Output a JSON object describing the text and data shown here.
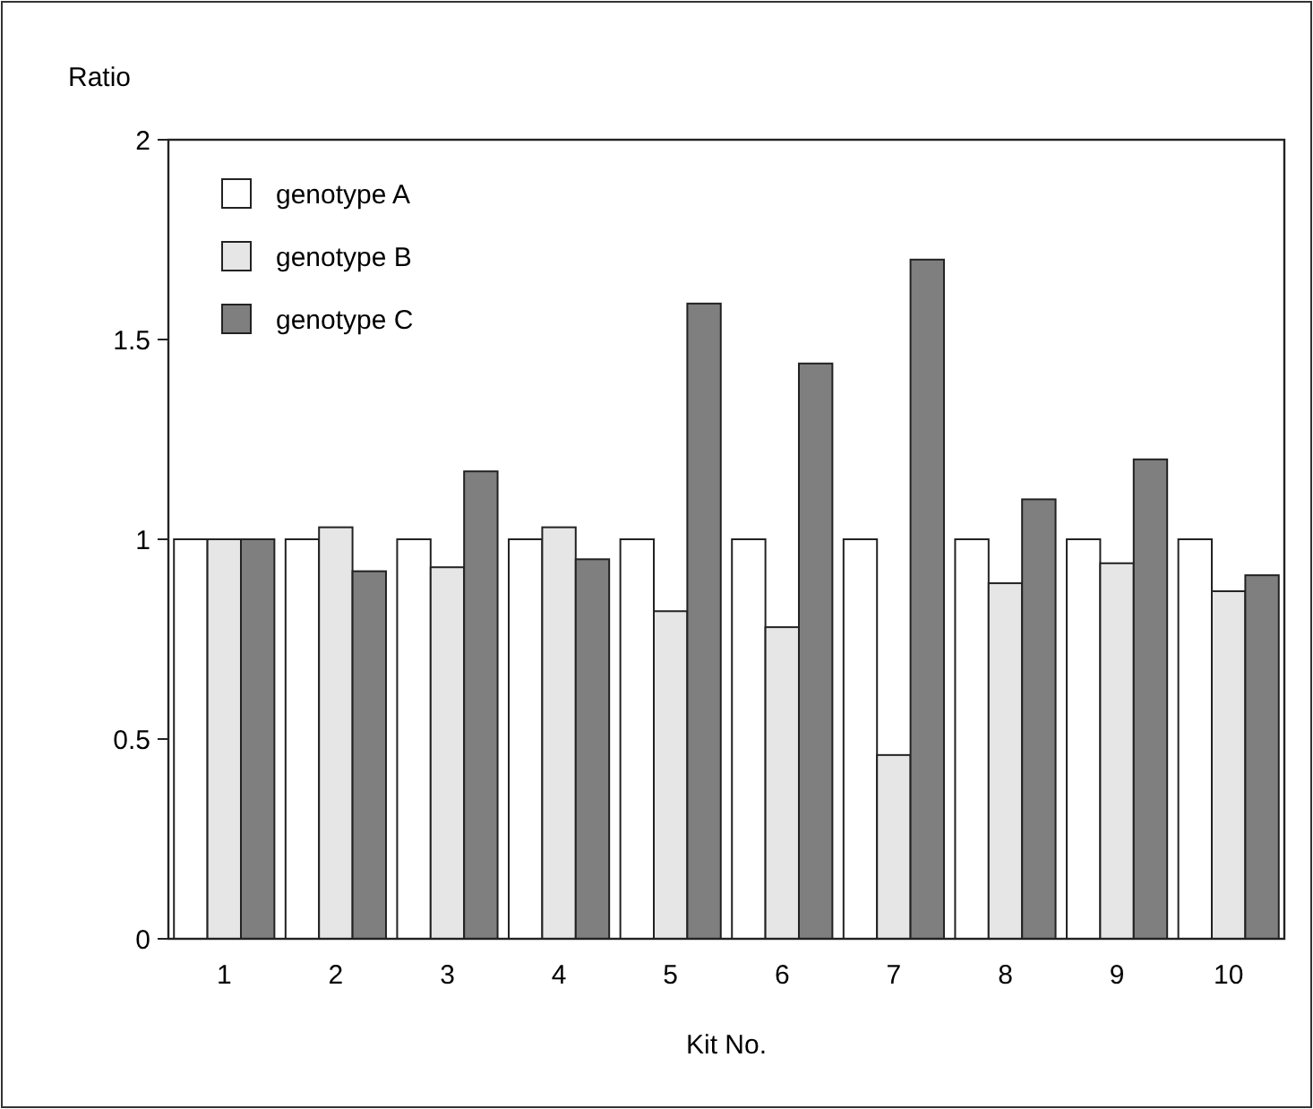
{
  "chart_data": {
    "type": "bar",
    "ylabel": "Ratio",
    "xlabel": "Kit No.",
    "categories": [
      "1",
      "2",
      "3",
      "4",
      "5",
      "6",
      "7",
      "8",
      "9",
      "10"
    ],
    "series": [
      {
        "name": "genotype A",
        "color": "#ffffff",
        "values": [
          1,
          1,
          1,
          1,
          1,
          1,
          1,
          1,
          1,
          1
        ]
      },
      {
        "name": "genotype B",
        "color": "#e6e6e6",
        "values": [
          1,
          1.03,
          0.93,
          1.03,
          0.82,
          0.78,
          0.46,
          0.89,
          0.94,
          0.87
        ]
      },
      {
        "name": "genotype C",
        "color": "#7f7f7f",
        "values": [
          1,
          0.92,
          1.17,
          0.95,
          1.59,
          1.44,
          1.7,
          1.1,
          1.2,
          0.91
        ]
      }
    ],
    "ylim": [
      0,
      2
    ],
    "yticks": [
      0,
      0.5,
      1,
      1.5,
      2
    ],
    "grid": false,
    "legend": "top left"
  }
}
